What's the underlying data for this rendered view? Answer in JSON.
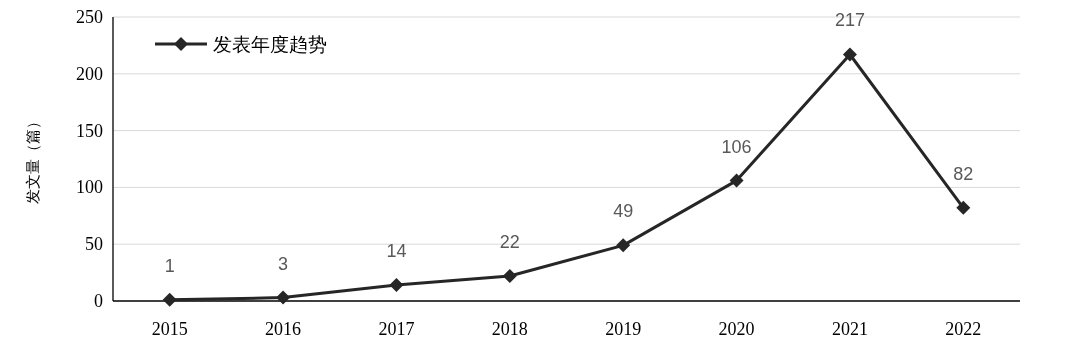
{
  "chart_data": {
    "type": "line",
    "ylabel": "发文量（篇）",
    "categories": [
      "2015",
      "2016",
      "2017",
      "2018",
      "2019",
      "2020",
      "2021",
      "2022"
    ],
    "series": [
      {
        "name": "发表年度趋势",
        "color": "#262626",
        "values": [
          1,
          3,
          14,
          22,
          49,
          106,
          217,
          82
        ]
      }
    ],
    "ylim": [
      0,
      250
    ],
    "yticks": [
      0,
      50,
      100,
      150,
      200,
      250
    ],
    "grid": "y",
    "legend": "top left",
    "marker": "diamond",
    "line_style": "solid",
    "data_labels": true
  }
}
